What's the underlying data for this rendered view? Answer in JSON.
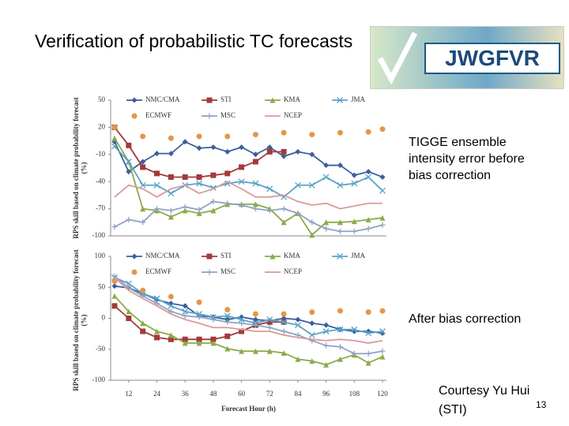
{
  "slide": {
    "title": "Verification of probabilistic TC forecasts",
    "logo": "JWGFVR",
    "note1": "TIGGE ensemble intensity error before bias correction",
    "note2": "After bias correction",
    "credit": "Courtesy Yu Hui (STI)",
    "page": "13"
  },
  "chart_data": [
    {
      "type": "line",
      "ylabel": "RPS skill based on climate probability forecast (%)",
      "x": [
        6,
        12,
        18,
        24,
        30,
        36,
        42,
        48,
        54,
        60,
        66,
        72,
        78,
        84,
        90,
        96,
        102,
        108,
        114,
        120
      ],
      "xlim": [
        6,
        120
      ],
      "ylim": [
        -100,
        50
      ],
      "yticks": [
        50,
        20,
        -10,
        -40,
        -70,
        -100
      ],
      "series": [
        {
          "name": "NMC/CMA",
          "color": "#3b5f9a",
          "marker": "diamond",
          "values": [
            4,
            -29,
            -18,
            -9,
            -9,
            4,
            -3,
            -2,
            -7,
            -2,
            -10,
            -2,
            -12,
            -7,
            -10,
            -22,
            -22,
            -33,
            -29,
            -35
          ]
        },
        {
          "name": "STI",
          "color": "#a33a3a",
          "marker": "square",
          "values": [
            20,
            0,
            -24,
            -31,
            -35,
            -35,
            -35,
            -33,
            -31,
            -24,
            -18,
            -7,
            -7,
            null,
            null,
            null,
            null,
            null,
            null,
            null
          ]
        },
        {
          "name": "KMA",
          "color": "#8aab48",
          "marker": "triangle",
          "values": [
            8,
            -18,
            -70,
            -72,
            -79,
            -72,
            -75,
            -72,
            -65,
            -65,
            -65,
            -70,
            -85,
            -75,
            -99,
            -85,
            -85,
            -84,
            -82,
            -80
          ]
        },
        {
          "name": "JMA",
          "color": "#5ba3c9",
          "marker": "x",
          "values": [
            -1,
            -18,
            -44,
            -44,
            -53,
            -44,
            -42,
            -47,
            -42,
            -40,
            -42,
            -48,
            -57,
            -44,
            -44,
            -35,
            -44,
            -42,
            -35,
            -50
          ]
        },
        {
          "name": "ECMWF",
          "color": "#e6954b",
          "marker": "circle",
          "line": false,
          "values": [
            20,
            null,
            10,
            null,
            8,
            null,
            10,
            null,
            10,
            null,
            12,
            null,
            14,
            null,
            12,
            null,
            14,
            null,
            15,
            18
          ]
        },
        {
          "name": "MSC",
          "color": "#8fa3c4",
          "marker": "plus",
          "values": [
            -90,
            -82,
            -85,
            -70,
            -72,
            -68,
            -71,
            -62,
            -64,
            -66,
            -70,
            -72,
            -70,
            -75,
            -85,
            -92,
            -95,
            -95,
            -92,
            -88
          ]
        },
        {
          "name": "NCEP",
          "color": "#d99a9a",
          "marker": "none",
          "values": [
            -57,
            -44,
            -48,
            -57,
            -48,
            -44,
            -53,
            -48,
            -40,
            -48,
            -57,
            -57,
            -55,
            -62,
            -66,
            -64,
            -70,
            -67,
            -64,
            -64
          ]
        }
      ]
    },
    {
      "type": "line",
      "ylabel": "RPS skill based on climate probability forecast (%)",
      "xlabel": "Forecast Hour (h)",
      "x": [
        6,
        12,
        18,
        24,
        30,
        36,
        42,
        48,
        54,
        60,
        66,
        72,
        78,
        84,
        90,
        96,
        102,
        108,
        114,
        120
      ],
      "xlim": [
        6,
        120
      ],
      "xticks": [
        12,
        24,
        36,
        48,
        60,
        72,
        84,
        96,
        108,
        120
      ],
      "ylim": [
        -100,
        100
      ],
      "yticks": [
        100,
        50,
        0,
        -50,
        -100
      ],
      "series": [
        {
          "name": "NMC/CMA",
          "color": "#3b5f9a",
          "marker": "diamond",
          "values": [
            52,
            49,
            40,
            30,
            24,
            20,
            4,
            2,
            -2,
            2,
            -2,
            -4,
            0,
            -2,
            -8,
            -11,
            -18,
            -21,
            -21,
            -24
          ]
        },
        {
          "name": "STI",
          "color": "#a33a3a",
          "marker": "square",
          "values": [
            20,
            0,
            -21,
            -31,
            -34,
            -34,
            -34,
            -34,
            -29,
            -21,
            -11,
            -6,
            -6,
            null,
            null,
            null,
            null,
            null,
            null,
            null
          ]
        },
        {
          "name": "KMA",
          "color": "#8aab48",
          "marker": "triangle",
          "values": [
            36,
            11,
            -8,
            -21,
            -27,
            -40,
            -40,
            -40,
            -49,
            -53,
            -53,
            -53,
            -56,
            -66,
            -69,
            -75,
            -66,
            -59,
            -72,
            -62
          ]
        },
        {
          "name": "JMA",
          "color": "#5ba3c9",
          "marker": "x",
          "values": [
            66,
            56,
            40,
            32,
            20,
            11,
            7,
            2,
            4,
            -2,
            -8,
            -2,
            -6,
            -11,
            -27,
            -21,
            -18,
            -18,
            -24,
            -21
          ]
        },
        {
          "name": "ECMWF",
          "color": "#e6954b",
          "marker": "circle",
          "line": false,
          "values": [
            60,
            null,
            45,
            null,
            35,
            null,
            26,
            null,
            14,
            null,
            7,
            null,
            7,
            null,
            10,
            null,
            12,
            null,
            10,
            12
          ]
        },
        {
          "name": "MSC",
          "color": "#8fa3c4",
          "marker": "plus",
          "values": [
            68,
            49,
            36,
            24,
            11,
            4,
            2,
            -2,
            -6,
            -8,
            -11,
            -15,
            -21,
            -27,
            -36,
            -44,
            -46,
            -57,
            -57,
            -53
          ]
        },
        {
          "name": "NCEP",
          "color": "#d99a9a",
          "marker": "none",
          "values": [
            66,
            45,
            32,
            20,
            7,
            -2,
            -8,
            -15,
            -15,
            -18,
            -21,
            -21,
            -27,
            -31,
            -34,
            -36,
            -34,
            -36,
            -40,
            -36
          ]
        }
      ]
    }
  ]
}
